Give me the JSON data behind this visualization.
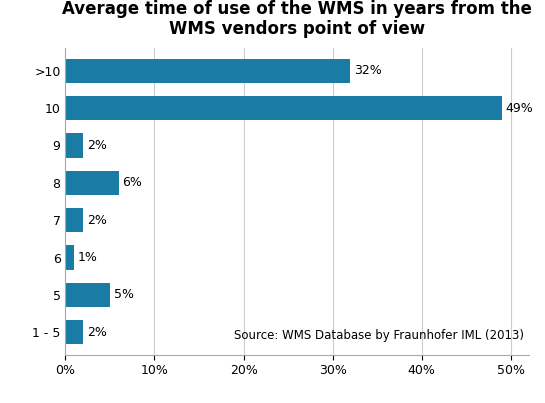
{
  "title": "Average time of use of the WMS in years from the\nWMS vendors point of view",
  "categories": [
    ">10",
    "10",
    "9",
    "8",
    "7",
    "6",
    "5",
    "1 - 5"
  ],
  "values": [
    32,
    49,
    2,
    6,
    2,
    1,
    5,
    2
  ],
  "labels": [
    "32%",
    "49%",
    "2%",
    "6%",
    "2%",
    "1%",
    "5%",
    "2%"
  ],
  "bar_color": "#1a7ca4",
  "source_text": "Source: WMS Database by Fraunhofer IML (2013)",
  "xlim": [
    0,
    52
  ],
  "title_fontsize": 12,
  "label_fontsize": 9,
  "tick_fontsize": 9,
  "source_fontsize": 8.5
}
